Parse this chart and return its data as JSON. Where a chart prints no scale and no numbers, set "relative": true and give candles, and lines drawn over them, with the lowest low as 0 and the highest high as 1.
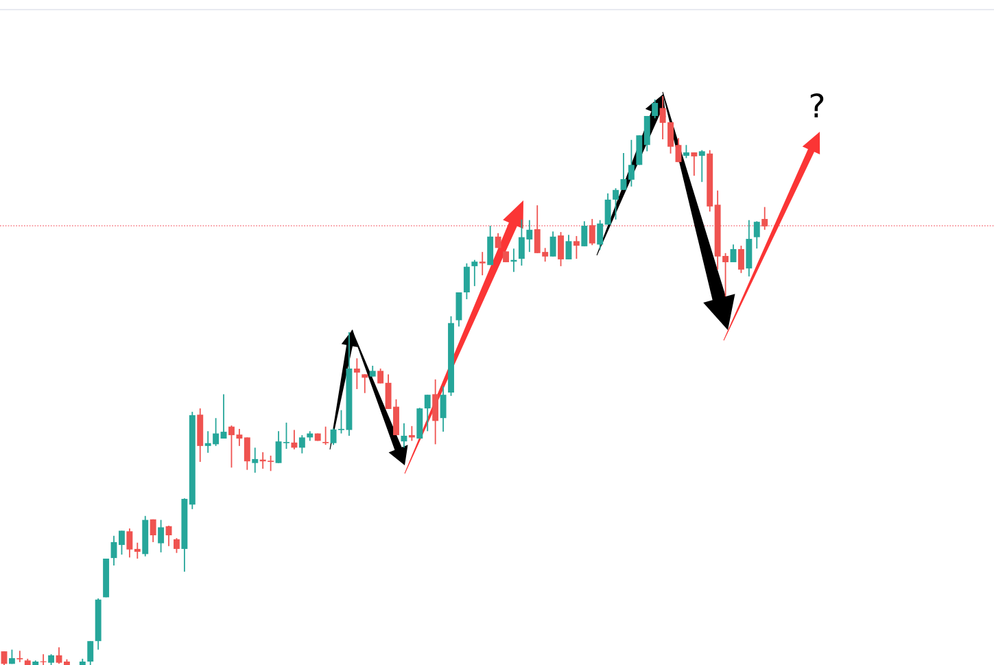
{
  "chart_data": {
    "type": "candlestick",
    "relative": true,
    "categories": [
      null,
      null,
      null,
      null,
      null,
      null,
      null,
      null,
      null,
      null,
      null,
      null,
      null,
      null,
      null,
      null,
      null,
      null,
      null,
      null,
      null,
      null,
      null,
      null,
      null,
      null,
      null,
      null,
      null,
      null,
      null,
      null,
      null,
      null,
      null,
      null,
      null,
      null,
      null,
      null,
      null,
      null,
      null,
      null,
      null,
      null,
      null,
      null,
      null,
      null,
      null,
      null,
      null,
      null,
      null,
      null,
      null,
      null,
      null,
      null,
      null,
      null,
      null,
      null,
      null,
      null,
      null,
      null,
      null,
      null,
      null,
      null,
      null,
      null,
      null,
      null,
      null,
      null,
      null,
      null,
      null,
      null,
      null,
      null,
      null,
      null,
      null,
      null,
      null,
      null,
      null,
      null,
      null,
      null,
      null,
      null,
      null,
      null
    ],
    "ohlc": [
      [
        0.024,
        0.024,
        0,
        0.002
      ],
      [
        0.002,
        0.027,
        0.002,
        0.012
      ],
      [
        0.012,
        0.025,
        0.005,
        0.01
      ],
      [
        0.008,
        0.011,
        0,
        0
      ],
      [
        0,
        0.008,
        0,
        0.006
      ],
      [
        0.006,
        0.019,
        0,
        0.005
      ],
      [
        0.004,
        0.019,
        0,
        0.017
      ],
      [
        0.017,
        0.031,
        0.002,
        0.004
      ],
      [
        0.006,
        0.01,
        0,
        0
      ],
      null,
      [
        0,
        0.011,
        0,
        0.006
      ],
      [
        0.006,
        0.042,
        0,
        0.042
      ],
      [
        0.042,
        0.117,
        0.027,
        0.115
      ],
      [
        0.119,
        0.187,
        0.119,
        0.187
      ],
      [
        0.188,
        0.227,
        0.175,
        0.216
      ],
      [
        0.211,
        0.236,
        0.194,
        0.236
      ],
      [
        0.235,
        0.24,
        0.189,
        0.203
      ],
      [
        0.204,
        0.215,
        0.187,
        0.199
      ],
      [
        0.195,
        0.262,
        0.191,
        0.255
      ],
      [
        0.256,
        0.256,
        0.216,
        0.228
      ],
      [
        0.214,
        0.255,
        0.198,
        0.242
      ],
      [
        0.244,
        0.245,
        0.209,
        0.228
      ],
      [
        0.221,
        0.223,
        0.197,
        0.204
      ],
      [
        0.204,
        0.293,
        0.164,
        0.292
      ],
      [
        0.282,
        0.445,
        0.274,
        0.439
      ],
      [
        0.44,
        0.451,
        0.357,
        0.385
      ],
      [
        0.385,
        0.411,
        0.373,
        0.39
      ],
      [
        0.388,
        0.434,
        0.385,
        0.407
      ],
      [
        0.398,
        0.476,
        0.398,
        0.41
      ],
      [
        0.419,
        0.421,
        0.347,
        0.404
      ],
      [
        0.405,
        0.415,
        0.385,
        0.398
      ],
      [
        0.4,
        0.4,
        0.343,
        0.358
      ],
      [
        0.355,
        0.382,
        0.338,
        0.362
      ],
      [
        0.361,
        0.374,
        0.345,
        0.358
      ],
      [
        0.359,
        0.368,
        0.341,
        0.357
      ],
      [
        0.355,
        0.411,
        0.355,
        0.393
      ],
      [
        0.39,
        0.426,
        0.38,
        0.392
      ],
      [
        0.391,
        0.413,
        0.379,
        0.382
      ],
      [
        0.382,
        0.404,
        0.372,
        0.4
      ],
      [
        0.4,
        0.411,
        0.394,
        0.407
      ],
      [
        0.407,
        0.407,
        0.394,
        0.394
      ],
      [
        0.392,
        0.419,
        0.387,
        0.39
      ],
      [
        0.39,
        0.416,
        0.387,
        0.414
      ],
      [
        0.413,
        0.448,
        0.407,
        0.415
      ],
      [
        0.413,
        0.585,
        0.403,
        0.521
      ],
      [
        0.521,
        0.539,
        0.485,
        0.514
      ],
      [
        0.511,
        0.511,
        0.478,
        0.505
      ],
      [
        0.507,
        0.526,
        0.507,
        0.517
      ],
      [
        0.517,
        0.521,
        0.495,
        0.495
      ],
      [
        0.496,
        0.511,
        0.45,
        0.45
      ],
      [
        0.454,
        0.467,
        0.404,
        0.404
      ],
      [
        0.393,
        0.425,
        0.382,
        0.403
      ],
      [
        0.404,
        0.42,
        0.394,
        0.4
      ],
      [
        0.398,
        0.452,
        0.398,
        0.451
      ],
      [
        0.451,
        0.475,
        0.411,
        0.475
      ],
      [
        0.476,
        0.502,
        0.388,
        0.429
      ],
      [
        0.434,
        0.49,
        0.41,
        0.475
      ],
      [
        0.479,
        0.613,
        0.473,
        0.601
      ],
      [
        0.606,
        0.655,
        0.595,
        0.655
      ],
      [
        0.655,
        0.706,
        0.643,
        0.7
      ],
      [
        0.701,
        0.712,
        0.666,
        0.709
      ],
      [
        0.709,
        0.726,
        0.685,
        0.706
      ],
      [
        0.703,
        0.772,
        0.703,
        0.753
      ],
      [
        0.753,
        0.759,
        0.733,
        0.733
      ],
      [
        0.727,
        0.727,
        0.708,
        0.708
      ],
      [
        0.709,
        0.732,
        0.691,
        0.712
      ],
      [
        0.714,
        0.783,
        0.702,
        0.752
      ],
      [
        0.748,
        0.782,
        0.726,
        0.765
      ],
      [
        0.766,
        0.808,
        0.724,
        0.724
      ],
      [
        0.726,
        0.733,
        0.709,
        0.718
      ],
      [
        0.718,
        0.762,
        0.718,
        0.753
      ],
      [
        0.755,
        0.761,
        0.701,
        0.713
      ],
      [
        0.713,
        0.756,
        0.713,
        0.745
      ],
      [
        0.745,
        0.754,
        0.714,
        0.737
      ],
      [
        0.736,
        0.78,
        0.736,
        0.772
      ],
      [
        0.773,
        0.784,
        0.738,
        0.741
      ],
      [
        0.739,
        0.782,
        0.73,
        0.776
      ],
      [
        0.774,
        0.829,
        0.774,
        0.818
      ],
      [
        0.818,
        0.838,
        0.783,
        0.835
      ],
      [
        0.835,
        0.9,
        0.835,
        0.854
      ],
      [
        0.853,
        0.923,
        0.841,
        0.879
      ],
      [
        0.879,
        0.931,
        0.879,
        0.931
      ],
      [
        0.914,
        0.965,
        0.903,
        0.965
      ],
      [
        0.965,
        0.994,
        0.961,
        0.988
      ],
      [
        0.979,
        1,
        0.924,
        0.953
      ],
      [
        0.954,
        0.954,
        0.899,
        0.911
      ],
      [
        0.914,
        0.926,
        0.884,
        0.884
      ],
      [
        0.895,
        0.914,
        0.891,
        0.901
      ],
      [
        0.901,
        0.901,
        0.86,
        0.894
      ],
      [
        0.895,
        0.905,
        0.849,
        0.903
      ],
      [
        0.899,
        0.905,
        0.797,
        0.806
      ],
      [
        0.809,
        0.834,
        0.695,
        0.718
      ],
      [
        0.719,
        0.724,
        0.648,
        0.708
      ],
      [
        0.708,
        0.739,
        0.708,
        0.731
      ],
      [
        0.731,
        0.737,
        0.689,
        0.695
      ],
      [
        0.697,
        0.782,
        0.683,
        0.749
      ],
      [
        0.752,
        0.78,
        0.732,
        0.779
      ],
      [
        0.784,
        0.805,
        0.765,
        0.771
      ]
    ],
    "colors": [
      "#ef5350",
      "#26a69a",
      "#ef5350",
      "#ef5350",
      "#26a69a",
      "#ef5350",
      "#26a69a",
      "#ef5350",
      "#ef5350",
      null,
      "#26a69a",
      "#26a69a",
      "#26a69a",
      "#26a69a",
      "#26a69a",
      "#26a69a",
      "#ef5350",
      "#ef5350",
      "#26a69a",
      "#ef5350",
      "#26a69a",
      "#ef5350",
      "#ef5350",
      "#26a69a",
      "#26a69a",
      "#ef5350",
      "#26a69a",
      "#26a69a",
      "#26a69a",
      "#ef5350",
      "#ef5350",
      "#ef5350",
      "#26a69a",
      "#ef5350",
      "#ef5350",
      "#26a69a",
      "#26a69a",
      "#ef5350",
      "#26a69a",
      "#26a69a",
      "#ef5350",
      "#ef5350",
      "#26a69a",
      "#26a69a",
      "#26a69a",
      "#ef5350",
      "#ef5350",
      "#26a69a",
      "#ef5350",
      "#ef5350",
      "#ef5350",
      "#26a69a",
      "#ef5350",
      "#26a69a",
      "#26a69a",
      "#ef5350",
      "#26a69a",
      "#26a69a",
      "#26a69a",
      "#26a69a",
      "#26a69a",
      "#ef5350",
      "#26a69a",
      "#ef5350",
      "#ef5350",
      "#26a69a",
      "#26a69a",
      "#26a69a",
      "#ef5350",
      "#ef5350",
      "#26a69a",
      "#ef5350",
      "#26a69a",
      "#ef5350",
      "#26a69a",
      "#ef5350",
      "#26a69a",
      "#26a69a",
      "#26a69a",
      "#26a69a",
      "#26a69a",
      "#26a69a",
      "#26a69a",
      "#26a69a",
      "#ef5350",
      "#ef5350",
      "#ef5350",
      "#26a69a",
      "#ef5350",
      "#26a69a",
      "#ef5350",
      "#ef5350",
      "#ef5350",
      "#26a69a",
      "#ef5350",
      "#26a69a",
      "#26a69a",
      "#ef5350"
    ],
    "ref_lines": [
      {
        "axis": "y",
        "value": 0.772,
        "color": "#f23645",
        "line_style": "dotted"
      }
    ],
    "annotations": [
      "?"
    ]
  }
}
